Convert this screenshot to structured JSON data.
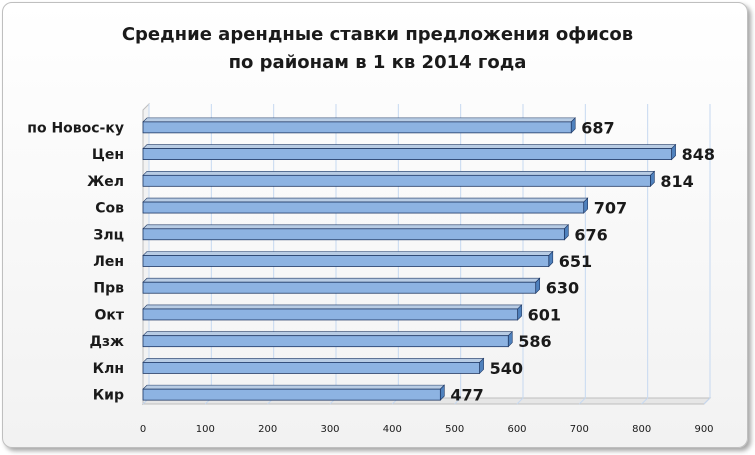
{
  "chart_data": {
    "type": "bar",
    "orientation": "horizontal",
    "title_lines": [
      "Средние арендные ставки предложения офисов",
      "по районам в 1 кв 2014 года"
    ],
    "categories": [
      "по Новос-ку",
      "Цен",
      "Жел",
      "Сов",
      "Злц",
      "Лен",
      "Прв",
      "Окт",
      "Дзж",
      "Клн",
      "Кир"
    ],
    "values": [
      687,
      848,
      814,
      707,
      676,
      651,
      630,
      601,
      586,
      540,
      477
    ],
    "value_labels": [
      "687",
      "848",
      "814",
      "707",
      "676",
      "651",
      "630",
      "601",
      "586",
      "540",
      "477"
    ],
    "xlim": [
      0,
      900
    ],
    "x_ticks": [
      "0",
      "100",
      "200",
      "300",
      "400",
      "500",
      "600",
      "700",
      "800",
      "900"
    ],
    "grid": "vertical",
    "legend": "none",
    "colors": {
      "bar_fill": "#8db3e2",
      "bar_side": "#4f81bd",
      "bar_edge": "#1f3864",
      "grid": "#c6d9f1"
    }
  }
}
